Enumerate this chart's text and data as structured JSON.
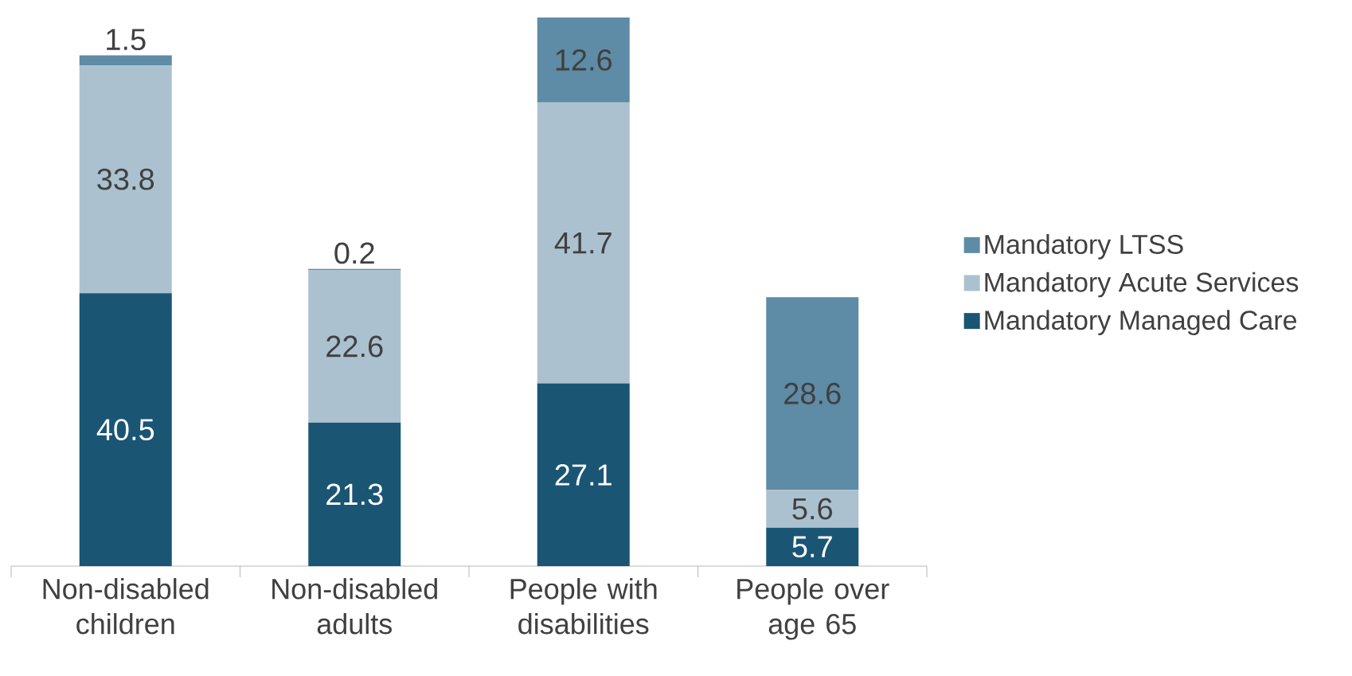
{
  "chart_data": {
    "type": "bar",
    "stacked": true,
    "data_labels": true,
    "legend": "right",
    "categories": [
      "Non-disabled children",
      "Non-disabled adults",
      "People with disabilities",
      "People over age 65"
    ],
    "series": [
      {
        "name": "Mandatory Managed Care",
        "color": "#1a5574",
        "values": [
          40.5,
          21.3,
          27.1,
          5.7
        ]
      },
      {
        "name": "Mandatory Acute Services",
        "color": "#abc1cf",
        "values": [
          33.8,
          22.6,
          41.7,
          5.6
        ]
      },
      {
        "name": "Mandatory LTSS",
        "color": "#5e8ba5",
        "values": [
          1.5,
          0.2,
          12.6,
          28.6
        ]
      }
    ]
  }
}
